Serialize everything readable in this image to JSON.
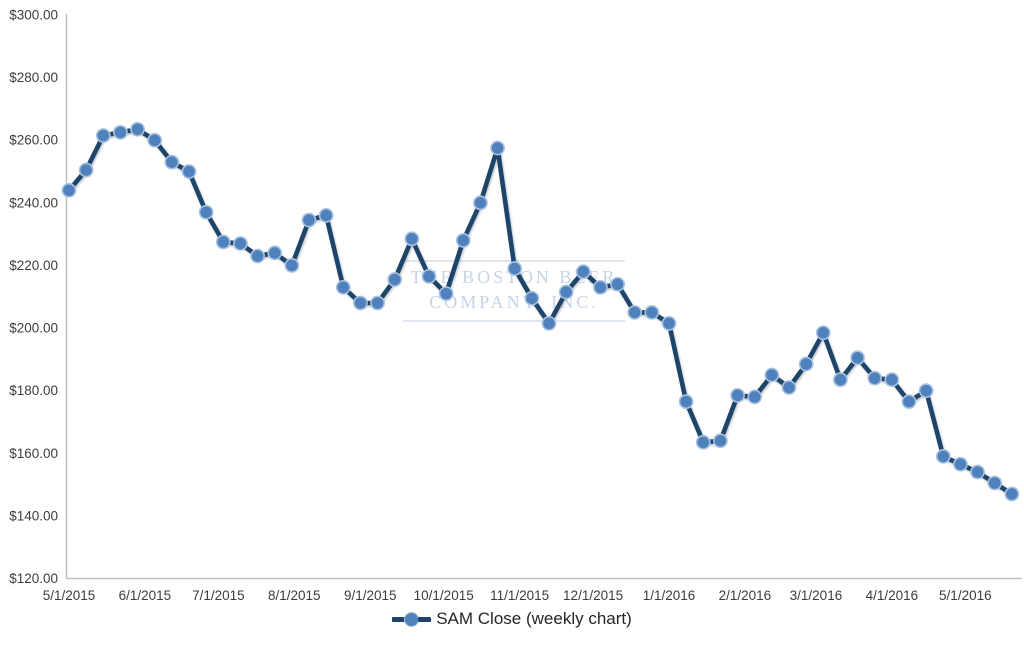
{
  "watermark": {
    "line1": "THE BOSTON BEER",
    "line2": "COMPANY, INC."
  },
  "legend": {
    "label": "SAM Close (weekly chart)"
  },
  "chart_data": {
    "type": "line",
    "title": "",
    "series": [
      {
        "name": "SAM Close (weekly chart)",
        "x_unit": "week",
        "x_start": "5/1/2015",
        "values": [
          244,
          250.5,
          261.5,
          262.5,
          263.5,
          260,
          253,
          250,
          237,
          227.5,
          227,
          223,
          224,
          220,
          234.5,
          236,
          213,
          208,
          208,
          215.5,
          228.5,
          216.5,
          211,
          228,
          240,
          257.5,
          219,
          209.5,
          201.5,
          211.5,
          218,
          213,
          214,
          205,
          205,
          201.5,
          176.5,
          163.5,
          164,
          178.5,
          178,
          185,
          181,
          188.5,
          198.5,
          183.5,
          190.5,
          184,
          183.5,
          176.5,
          180,
          159,
          156.5,
          154,
          150.5,
          147
        ]
      }
    ],
    "ylim": [
      120,
      300
    ],
    "y_ticks": [
      300,
      280,
      260,
      240,
      220,
      200,
      180,
      160,
      140,
      120
    ],
    "y_tick_labels": [
      "$300.00",
      "$280.00",
      "$260.00",
      "$240.00",
      "$220.00",
      "$200.00",
      "$180.00",
      "$160.00",
      "$140.00",
      "$120.00"
    ],
    "x_tick_labels": [
      "5/1/2015",
      "6/1/2015",
      "7/1/2015",
      "8/1/2015",
      "9/1/2015",
      "10/1/2015",
      "11/1/2015",
      "12/1/2015",
      "1/1/2016",
      "2/1/2016",
      "3/1/2016",
      "4/1/2016",
      "5/1/2016"
    ],
    "grid": false,
    "legend_position": "bottom",
    "colors": {
      "line": "#1e4569",
      "marker_fill": "#4f81bd",
      "marker_border": "#a9c2e0",
      "axis": "#bfbfbf",
      "tick_text": "#3d3d3d",
      "legend_text": "#262626",
      "watermark_text": "#c6d4e7",
      "watermark_rule": "#dfe5ee",
      "background": "#ffffff"
    }
  }
}
